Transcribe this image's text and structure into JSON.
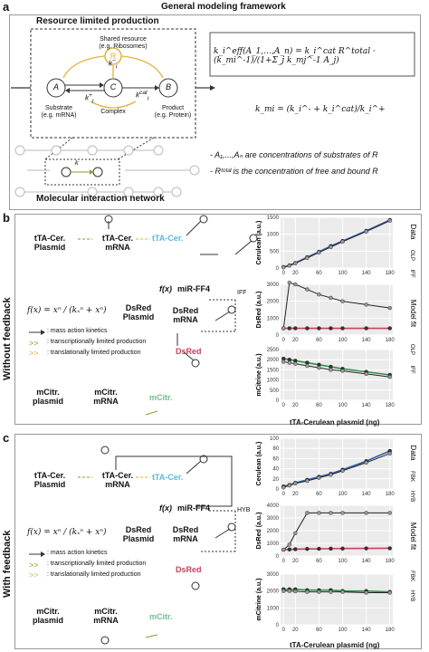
{
  "header": {
    "panel_a": "a",
    "title": "General modeling framework"
  },
  "panel_a": {
    "box_title": "Resource limited production",
    "shared": "Shared resource",
    "shared2": "(e.g. Ribosomes)",
    "R": "R",
    "A": "A",
    "C": "C",
    "B": "B",
    "ki_minus": "k",
    "ki_plus": "k",
    "kcat": "k",
    "sub_i": "i",
    "sup_minus": "−",
    "sup_plus": "+",
    "sup_cat": "cat",
    "substrate": "Substrate",
    "substrate2": "(e.g. mRNA)",
    "complex": "Complex",
    "product": "Product",
    "product2": "(e.g. Protein)",
    "net_title": "Molecular interaction network",
    "net_keff": "k",
    "eq1": "k_i^eff(A_1,…,A_n) = k_i^cat R^total · (k_mi^-1)/(1+Σ_j k_mj^-1 A_j)",
    "eq2": "k_mi = (k_i^- + k_i^cat)/k_i^+",
    "bullet1": "- A₁,...,Aₙ are concentrations of substrates of R",
    "bullet2": "- Rᵗᵒᵗᵃˡ is the concentration of free and bound R"
  },
  "panel_b": {
    "letter": "b",
    "side": "Without feedback",
    "tta_plasmid1": "tTA-Cer.",
    "tta_plasmid2": "Plasmid",
    "tta_mrna1": "tTA-Cer.",
    "tta_mrna2": "mRNA",
    "tta_protein": "tTA-Cer.",
    "mir": "miR-FF4",
    "fx": "f(x)",
    "dsred_plasmid1": "DsRed",
    "dsred_plasmid2": "Plasmid",
    "dsred_mrna1": "DsRed",
    "dsred_mrna2": "mRNA",
    "dsred": "DsRed",
    "iff": "IFF",
    "formula": "f(x) = xⁿ / (kₓⁿ + xⁿ)",
    "legend1": ": mass action kinetics",
    "legend2": ": transcriptionally limited production",
    "legend3": ": translationally limited production",
    "mcit_plasmid1": "mCitr.",
    "mcit_plasmid2": "plasmid",
    "mcit_mrna1": "mCitr.",
    "mcit_mrna2": "mRNA",
    "mcit": "mCitr.",
    "empty": "∅",
    "xlabel": "tTA-Cerulean plasmid (ng)",
    "right_data": "Data",
    "right_fit": "Model fit",
    "leg_a": "OLP",
    "leg_b": "IFF"
  },
  "panel_c": {
    "letter": "c",
    "side": "With feedback",
    "mir": "miR-FF4",
    "fx": "f(x)",
    "hyb": "HYB",
    "xlabel": "tTA-Cerulean plasmid (ng)",
    "right_data": "Data",
    "right_fit": "Model fit",
    "leg_a": "FBK",
    "leg_b": "HYB"
  },
  "colors": {
    "cerulean": "#5bb7dc",
    "dsred": "#c9405a",
    "mcitrine": "#6fbf8e",
    "resource": "#e0b23a",
    "arrow_green": "#8f9a2a",
    "fit_blue": "#2a5db0",
    "fit_red": "#c9405a",
    "fit_green": "#2f8f4a"
  },
  "chart_data": [
    {
      "type": "line",
      "title": "",
      "ylabel": "Cerulean (a.u.)",
      "x": [
        0,
        10,
        20,
        40,
        60,
        80,
        100,
        140,
        180
      ],
      "xticks": [
        0,
        20,
        60,
        100,
        140,
        180
      ],
      "ylim": [
        0,
        1500
      ],
      "yticks": [
        0,
        500,
        1000,
        1500
      ],
      "series": [
        {
          "name": "OLP",
          "values": [
            30,
            80,
            150,
            320,
            480,
            650,
            800,
            1100,
            1420
          ]
        },
        {
          "name": "IFF",
          "values": [
            20,
            70,
            140,
            300,
            460,
            620,
            780,
            1080,
            1400
          ]
        }
      ]
    },
    {
      "type": "line",
      "title": "",
      "ylabel": "DsRed (a.u.)",
      "x": [
        0,
        10,
        20,
        40,
        60,
        80,
        100,
        140,
        180
      ],
      "xticks": [
        0,
        20,
        60,
        100,
        140,
        180
      ],
      "ylim": [
        0,
        3000
      ],
      "yticks": [
        0,
        1000,
        2000,
        3000
      ],
      "series": [
        {
          "name": "OLP",
          "values": [
            400,
            400,
            400,
            400,
            400,
            400,
            400,
            400,
            400
          ]
        },
        {
          "name": "IFF",
          "values": [
            400,
            3100,
            3000,
            2700,
            2400,
            2200,
            2000,
            1800,
            1600
          ]
        }
      ]
    },
    {
      "type": "line",
      "title": "",
      "ylabel": "mCitrine (a.u.)",
      "x": [
        0,
        10,
        20,
        40,
        60,
        80,
        100,
        140,
        180
      ],
      "xticks": [
        0,
        20,
        60,
        100,
        140,
        180
      ],
      "ylim": [
        0,
        2500
      ],
      "yticks": [
        0,
        500,
        1000,
        1500,
        2000,
        2500
      ],
      "series": [
        {
          "name": "OLP",
          "values": [
            2050,
            2000,
            1950,
            1850,
            1750,
            1650,
            1550,
            1400,
            1250
          ]
        },
        {
          "name": "IFF",
          "values": [
            1900,
            1850,
            1800,
            1700,
            1600,
            1500,
            1450,
            1300,
            1150
          ]
        }
      ]
    },
    {
      "type": "line",
      "title": "",
      "ylabel": "Cerulean (a.u.)",
      "x": [
        0,
        10,
        20,
        40,
        60,
        80,
        100,
        140,
        180
      ],
      "xticks": [
        0,
        20,
        60,
        100,
        140,
        180
      ],
      "ylim": [
        0,
        100
      ],
      "yticks": [
        0,
        20,
        40,
        60,
        80,
        100
      ],
      "series": [
        {
          "name": "FBK",
          "values": [
            5,
            8,
            12,
            18,
            24,
            30,
            38,
            55,
            75
          ]
        },
        {
          "name": "HYB",
          "values": [
            3,
            7,
            11,
            16,
            22,
            28,
            36,
            52,
            70
          ]
        }
      ]
    },
    {
      "type": "line",
      "title": "",
      "ylabel": "DsRed (a.u.)",
      "x": [
        0,
        10,
        20,
        40,
        60,
        80,
        100,
        140,
        180
      ],
      "xticks": [
        0,
        20,
        60,
        100,
        140,
        180
      ],
      "ylim": [
        0,
        4000
      ],
      "yticks": [
        0,
        1000,
        2000,
        3000,
        4000
      ],
      "series": [
        {
          "name": "FBK",
          "values": [
            500,
            520,
            540,
            560,
            570,
            580,
            590,
            600,
            610
          ]
        },
        {
          "name": "HYB",
          "values": [
            500,
            900,
            1800,
            3400,
            3400,
            3400,
            3400,
            3400,
            3400
          ]
        }
      ]
    },
    {
      "type": "line",
      "title": "",
      "ylabel": "mCitrine (a.u.)",
      "x": [
        0,
        10,
        20,
        40,
        60,
        80,
        100,
        140,
        180
      ],
      "xticks": [
        0,
        20,
        60,
        100,
        140,
        180
      ],
      "ylim": [
        0,
        3000
      ],
      "yticks": [
        0,
        1000,
        2000,
        3000
      ],
      "series": [
        {
          "name": "FBK",
          "values": [
            2100,
            2100,
            2100,
            2050,
            2050,
            2050,
            2000,
            2000,
            1950
          ]
        },
        {
          "name": "HYB",
          "values": [
            2000,
            2000,
            1980,
            1950,
            1950,
            1950,
            1950,
            1900,
            1900
          ]
        }
      ]
    }
  ]
}
